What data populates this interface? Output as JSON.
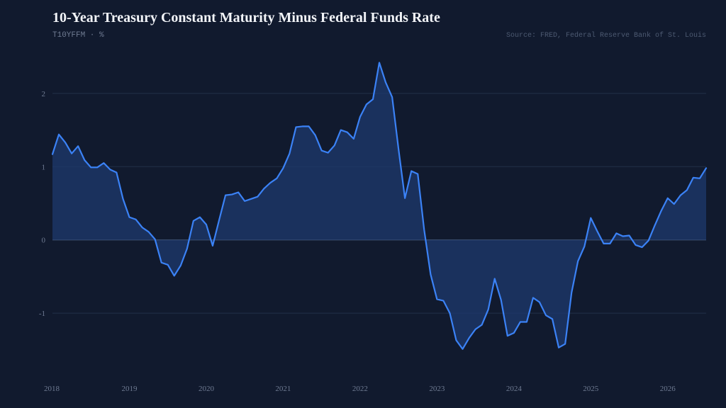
{
  "header": {
    "title": "10-Year Treasury Constant Maturity Minus Federal Funds Rate",
    "subtitle": "T10YFFM · %",
    "source": "Source: FRED, Federal Reserve Bank of St. Louis"
  },
  "colors": {
    "background": "#111a2e",
    "line": "#3b82f6",
    "area": "#1e3a6e",
    "grid": "#223049",
    "zero_line": "#3f4f6b"
  },
  "chart_data": {
    "type": "area",
    "title": "10-Year Treasury Constant Maturity Minus Federal Funds Rate",
    "subtitle": "T10YFFM · %",
    "xlabel": "",
    "ylabel": "",
    "xlim": [
      2018.0,
      2026.5
    ],
    "ylim": [
      -1.85,
      2.55
    ],
    "y_ticks": [
      2,
      1,
      0,
      -1
    ],
    "x_ticks": [
      2018,
      2019,
      2020,
      2021,
      2022,
      2023,
      2024,
      2025,
      2026
    ],
    "grid": "horizontal",
    "legend": "none",
    "series": [
      {
        "x": [
          2018.0,
          2018.083,
          2018.167,
          2018.25,
          2018.333,
          2018.417,
          2018.5,
          2018.583,
          2018.667,
          2018.75,
          2018.833,
          2018.917,
          2019.0,
          2019.083,
          2019.167,
          2019.25,
          2019.333,
          2019.417,
          2019.5,
          2019.583,
          2019.667,
          2019.75,
          2019.833,
          2019.917,
          2020.0,
          2020.083,
          2020.167,
          2020.25,
          2020.333,
          2020.417,
          2020.5,
          2020.583,
          2020.667,
          2020.75,
          2020.833,
          2020.917,
          2021.0,
          2021.083,
          2021.167,
          2021.25,
          2021.333,
          2021.417,
          2021.5,
          2021.583,
          2021.667,
          2021.75,
          2021.833,
          2021.917,
          2022.0,
          2022.083,
          2022.167,
          2022.25,
          2022.333,
          2022.417,
          2022.5,
          2022.583,
          2022.667,
          2022.75,
          2022.833,
          2022.917,
          2023.0,
          2023.083,
          2023.167,
          2023.25,
          2023.333,
          2023.417,
          2023.5,
          2023.583,
          2023.667,
          2023.75,
          2023.833,
          2023.917,
          2024.0,
          2024.083,
          2024.167,
          2024.25,
          2024.333,
          2024.417,
          2024.5,
          2024.583,
          2024.667,
          2024.75,
          2024.833,
          2024.917,
          2025.0,
          2025.083,
          2025.167,
          2025.25,
          2025.333,
          2025.417,
          2025.5,
          2025.583,
          2025.667,
          2025.75,
          2025.833,
          2025.917,
          2026.0,
          2026.083,
          2026.167,
          2026.25,
          2026.333,
          2026.417,
          2026.5
        ],
        "values": [
          1.17,
          1.44,
          1.33,
          1.18,
          1.28,
          1.09,
          0.99,
          0.99,
          1.05,
          0.96,
          0.92,
          0.56,
          0.31,
          0.28,
          0.17,
          0.11,
          0.01,
          -0.31,
          -0.34,
          -0.49,
          -0.35,
          -0.12,
          0.26,
          0.31,
          0.21,
          -0.08,
          0.27,
          0.61,
          0.62,
          0.65,
          0.53,
          0.56,
          0.59,
          0.7,
          0.78,
          0.84,
          0.98,
          1.18,
          1.54,
          1.55,
          1.55,
          1.43,
          1.22,
          1.19,
          1.29,
          1.5,
          1.47,
          1.38,
          1.68,
          1.85,
          1.92,
          2.42,
          2.15,
          1.95,
          1.24,
          0.57,
          0.94,
          0.9,
          0.14,
          -0.47,
          -0.81,
          -0.83,
          -1.0,
          -1.37,
          -1.49,
          -1.34,
          -1.22,
          -1.16,
          -0.95,
          -0.53,
          -0.82,
          -1.31,
          -1.27,
          -1.12,
          -1.12,
          -0.79,
          -0.85,
          -1.03,
          -1.08,
          -1.47,
          -1.42,
          -0.72,
          -0.29,
          -0.09,
          0.3,
          0.12,
          -0.05,
          -0.05,
          0.09,
          0.05,
          0.06,
          -0.07,
          -0.1,
          -0.01,
          0.2,
          0.4,
          0.57,
          0.49,
          0.61,
          0.68,
          0.85,
          0.84,
          0.98
        ]
      }
    ]
  }
}
